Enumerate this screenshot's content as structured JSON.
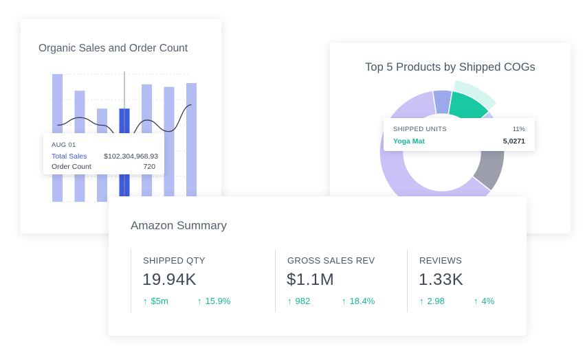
{
  "organic_card": {
    "title": "Organic Sales and Order Count",
    "tooltip": {
      "date": "AUG 01",
      "total_sales_label": "Total Sales",
      "total_sales_value": "$102,304,968.93",
      "order_count_label": "Order Count",
      "order_count_value": "720"
    }
  },
  "top5_card": {
    "title": "Top 5 Products by Shipped COGs",
    "tooltip": {
      "header": "SHIPPED UNITS",
      "percent": "11%",
      "product": "Yoga Mat",
      "units": "5,0271"
    }
  },
  "summary_card": {
    "title": "Amazon Summary",
    "metrics": [
      {
        "label": "SHIPPED QTY",
        "value": "19.94K",
        "delta1": "$5m",
        "delta2": "15.9%"
      },
      {
        "label": "GROSS SALES REV",
        "value": "$1.1M",
        "delta1": "982",
        "delta2": "18.4%"
      },
      {
        "label": "REVIEWS",
        "value": "1.33K",
        "delta1": "2.98",
        "delta2": "4%"
      }
    ]
  },
  "icons": {
    "delta_arrow": "arrow-up-icon"
  },
  "colors": {
    "bar": "#b4bcf4",
    "bar_active": "#3d5ce0",
    "accent_green": "#16b899",
    "donut": [
      "#9ba8ea",
      "#19c9a4",
      "#c6d0f8",
      "#9c9dad",
      "#c9c2f6"
    ],
    "donut_highlight": "#d6f5ee"
  },
  "chart_data": [
    {
      "type": "bar",
      "title": "Organic Sales and Order Count",
      "categories": [
        "",
        "",
        "",
        "AUG 01",
        "",
        "",
        ""
      ],
      "series": [
        {
          "name": "Total Sales",
          "values": [
            100,
            87,
            73,
            73,
            92,
            90,
            93
          ],
          "highlight_index": 3
        },
        {
          "name": "Order Count",
          "type": "line",
          "values": [
            60,
            66,
            60,
            48,
            64,
            55,
            76
          ]
        }
      ],
      "ylim": [
        0,
        100
      ],
      "grid": true
    },
    {
      "type": "pie",
      "title": "Top 5 Products by Shipped COGs",
      "donut": true,
      "values": [
        5,
        11,
        10,
        12,
        62
      ],
      "highlight_index": 1
    }
  ]
}
